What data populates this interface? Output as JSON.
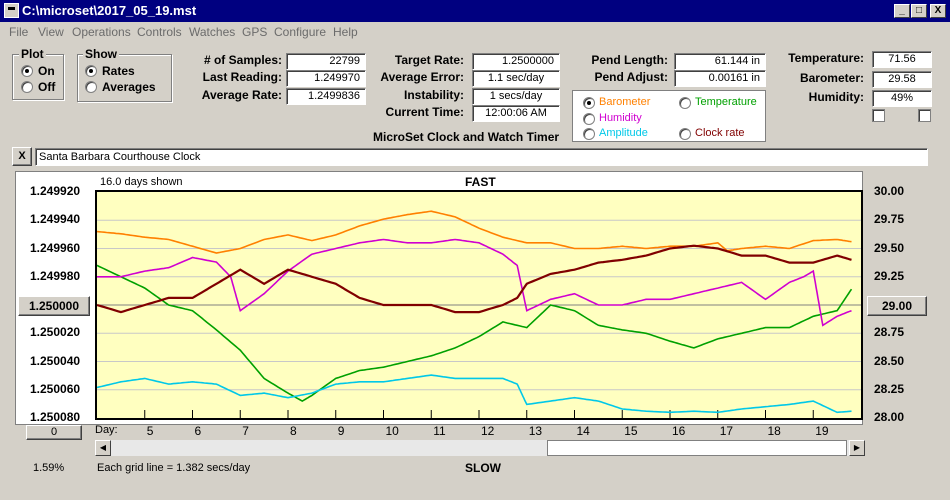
{
  "window": {
    "title": "C:\\microset\\2017_05_19.mst",
    "min_glyph": "_",
    "max_glyph": "□",
    "close_glyph": "X"
  },
  "menu": [
    "File",
    "View",
    "Operations",
    "Controls",
    "Watches",
    "GPS",
    "Configure",
    "Help"
  ],
  "plot_group": {
    "title": "Plot",
    "options": [
      "On",
      "Off"
    ],
    "selected": 0
  },
  "show_group": {
    "title": "Show",
    "options": [
      "Rates",
      "Averages"
    ],
    "selected": 0
  },
  "stats": {
    "samples_label": "# of Samples:",
    "samples": "22799",
    "last_reading_label": "Last Reading:",
    "last_reading": "1.249970",
    "average_rate_label": "Average Rate:",
    "average_rate": "1.2499836"
  },
  "rates": {
    "target_rate_label": "Target Rate:",
    "target_rate": "1.2500000",
    "average_error_label": "Average Error:",
    "average_error": "1.1 sec/day",
    "instability_label": "Instability:",
    "instability": "1 secs/day",
    "current_time_label": "Current Time:",
    "current_time": "12:00:06 AM"
  },
  "app_label": "MicroSet Clock and Watch Timer",
  "pendulum": {
    "length_label": "Pend Length:",
    "length": "61.144 in",
    "adjust_label": "Pend Adjust:",
    "adjust": "0.00161 in"
  },
  "sensor_options": [
    {
      "label": "Barometer",
      "color": "#ff8000",
      "selected": true
    },
    {
      "label": "Temperature",
      "color": "#00a000",
      "selected": false
    },
    {
      "label": "Humidity",
      "color": "#d000d0",
      "selected": false
    },
    {
      "label": "Amplitude",
      "color": "#00c8e8",
      "selected": false
    },
    {
      "label": "Clock rate",
      "color": "#800000",
      "selected": false
    }
  ],
  "environment": {
    "temperature_label": "Temperature:",
    "temperature": "71.56",
    "barometer_label": "Barometer:",
    "barometer": "29.58",
    "humidity_label": "Humidity:",
    "humidity": "49%"
  },
  "description": {
    "close_glyph": "X",
    "text": "Santa Barbara Courthouse Clock"
  },
  "chart_labels": {
    "days_shown": "16.0 days shown",
    "fast": "FAST",
    "slow": "SLOW",
    "grid_note": "Each grid line = 1.382 secs/day",
    "day_prefix": "Day:",
    "left_button": "1.250000",
    "right_button": "29.00",
    "bottom_button": "0",
    "percent": "1.59%"
  },
  "chart_data": {
    "type": "line",
    "x_range": [
      4,
      20
    ],
    "x_ticks": [
      5,
      6,
      7,
      8,
      9,
      10,
      11,
      12,
      13,
      14,
      15,
      16,
      17,
      18,
      19
    ],
    "left_axis_ticks": [
      "1.249920",
      "1.249940",
      "1.249960",
      "1.249980",
      "1.250000",
      "1.250020",
      "1.250040",
      "1.250060",
      "1.250080"
    ],
    "left_ylim": [
      1.24992,
      1.25008
    ],
    "left_axis_inverted": true,
    "right_axis_ticks": [
      "30.00",
      "29.75",
      "29.50",
      "29.25",
      "29.00",
      "28.75",
      "28.50",
      "28.25",
      "28.00"
    ],
    "right_ylim": [
      28.0,
      30.0
    ],
    "grid": true,
    "series": [
      {
        "name": "Barometer",
        "color": "#ff8000",
        "axis": "right",
        "x": [
          4,
          4.5,
          5,
          5.5,
          6,
          6.5,
          7,
          7.5,
          8,
          8.5,
          9,
          9.5,
          10,
          10.5,
          11,
          11.5,
          12,
          12.5,
          13,
          13.5,
          14,
          14.5,
          15,
          15.5,
          16,
          16.5,
          17,
          17.2,
          17.5,
          18,
          18.5,
          19,
          19.5,
          19.8
        ],
        "y": [
          29.65,
          29.63,
          29.6,
          29.58,
          29.52,
          29.46,
          29.5,
          29.58,
          29.62,
          29.57,
          29.62,
          29.7,
          29.76,
          29.8,
          29.83,
          29.78,
          29.68,
          29.6,
          29.55,
          29.55,
          29.5,
          29.5,
          29.52,
          29.5,
          29.52,
          29.52,
          29.55,
          29.48,
          29.5,
          29.52,
          29.5,
          29.57,
          29.58,
          29.56
        ]
      },
      {
        "name": "Temperature",
        "color": "#00a000",
        "axis": "right",
        "x": [
          4,
          4.5,
          5,
          5.5,
          6,
          6.5,
          7,
          7.5,
          8,
          8.3,
          8.5,
          9,
          9.5,
          10,
          10.5,
          11,
          11.5,
          12,
          12.5,
          13,
          13.5,
          14,
          14.5,
          15,
          15.5,
          16,
          16.5,
          17,
          17.5,
          18,
          18.5,
          19,
          19.5,
          19.8
        ],
        "y": [
          29.35,
          29.25,
          29.15,
          29.0,
          28.95,
          28.78,
          28.6,
          28.35,
          28.22,
          28.15,
          28.2,
          28.35,
          28.42,
          28.45,
          28.5,
          28.55,
          28.62,
          28.72,
          28.85,
          28.8,
          29.0,
          28.95,
          28.82,
          28.78,
          28.75,
          28.68,
          28.62,
          28.7,
          28.75,
          28.8,
          28.8,
          28.9,
          28.95,
          29.14
        ]
      },
      {
        "name": "Humidity",
        "color": "#d000d0",
        "axis": "right",
        "x": [
          4,
          4.5,
          5,
          5.5,
          6,
          6.5,
          6.8,
          7,
          7.5,
          8,
          8.5,
          9,
          9.5,
          10,
          10.5,
          11,
          11.5,
          12,
          12.5,
          12.8,
          13,
          13.5,
          14,
          14.5,
          15,
          15.5,
          16,
          16.5,
          17,
          17.5,
          18,
          18.5,
          18.8,
          19,
          19.2,
          19.5,
          19.8
        ],
        "y": [
          29.25,
          29.25,
          29.3,
          29.33,
          29.42,
          29.38,
          29.25,
          28.95,
          29.1,
          29.3,
          29.45,
          29.5,
          29.55,
          29.58,
          29.55,
          29.55,
          29.58,
          29.55,
          29.45,
          29.35,
          28.95,
          29.05,
          29.1,
          29.0,
          29.0,
          29.05,
          29.05,
          29.1,
          29.15,
          29.2,
          29.05,
          29.2,
          29.25,
          29.3,
          28.82,
          28.9,
          28.95
        ]
      },
      {
        "name": "Amplitude",
        "color": "#00c8e8",
        "axis": "right",
        "x": [
          4,
          4.5,
          5,
          5.5,
          6,
          6.5,
          7,
          7.5,
          8,
          8.5,
          9,
          9.5,
          10,
          10.5,
          11,
          11.5,
          12,
          12.5,
          12.8,
          13,
          13.5,
          14,
          14.5,
          15,
          15.5,
          16,
          16.5,
          17,
          17.5,
          18,
          18.5,
          19,
          19.5,
          19.8
        ],
        "y": [
          28.27,
          28.32,
          28.35,
          28.3,
          28.32,
          28.3,
          28.2,
          28.22,
          28.18,
          28.22,
          28.3,
          28.32,
          28.32,
          28.35,
          28.38,
          28.35,
          28.35,
          28.35,
          28.3,
          28.12,
          28.15,
          28.18,
          28.15,
          28.08,
          28.06,
          28.05,
          28.06,
          28.05,
          28.08,
          28.1,
          28.12,
          28.15,
          28.05,
          28.06
        ]
      },
      {
        "name": "Clock rate",
        "color": "#800000",
        "axis": "left",
        "x": [
          4,
          4.5,
          5,
          5.5,
          6,
          6.5,
          7,
          7.5,
          8,
          8.5,
          9,
          9.5,
          10,
          10.5,
          11,
          11.5,
          12,
          12.5,
          12.8,
          13,
          13.5,
          14,
          14.5,
          15,
          15.5,
          16,
          16.5,
          17,
          17.5,
          18,
          18.5,
          19,
          19.5,
          19.8
        ],
        "y": [
          1.25,
          1.250005,
          1.25,
          1.249995,
          1.249995,
          1.249985,
          1.249975,
          1.249985,
          1.249975,
          1.24998,
          1.249985,
          1.249995,
          1.25,
          1.25,
          1.25,
          1.250005,
          1.250005,
          1.25,
          1.249995,
          1.249985,
          1.249978,
          1.249975,
          1.24997,
          1.249968,
          1.249965,
          1.24996,
          1.249958,
          1.24996,
          1.249965,
          1.249965,
          1.24997,
          1.24997,
          1.249965,
          1.249968
        ]
      }
    ]
  }
}
